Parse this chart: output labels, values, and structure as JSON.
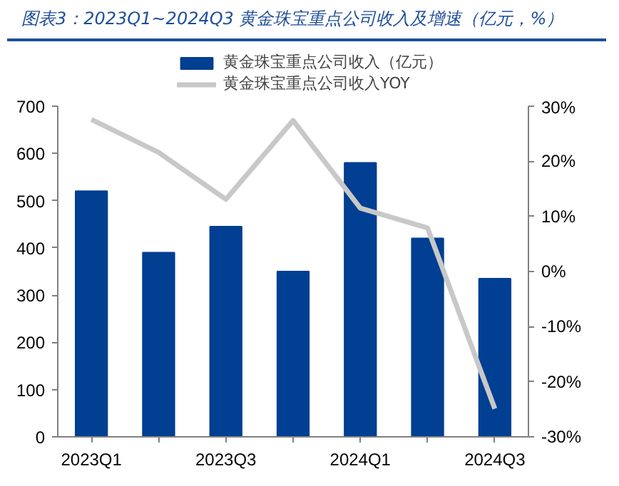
{
  "chart_data": {
    "type": "bar",
    "title": "图表3：2023Q1~2024Q3 黄金珠宝重点公司收入及增速（亿元，%）",
    "categories": [
      "2023Q1",
      null,
      "2023Q3",
      null,
      "2024Q1",
      null,
      "2024Q3"
    ],
    "series": [
      {
        "name": "黄金珠宝重点公司收入（亿元）",
        "color": "#003f91",
        "values": [
          520,
          390,
          445,
          350,
          580,
          420,
          335
        ]
      },
      {
        "name": "黄金珠宝重点公司收入YOY",
        "type": "line",
        "axis": "y2",
        "color": "#c8c8c8",
        "values": [
          27.6,
          21.6,
          13.1,
          27.4,
          11.5,
          7.9,
          -24.9
        ]
      }
    ],
    "ylim": [
      0,
      700
    ],
    "yticks": [
      0,
      100,
      200,
      300,
      400,
      500,
      600,
      700
    ],
    "y2lim": [
      -30,
      30
    ],
    "y2ticks": [
      {
        "value": -30,
        "label": "-30%"
      },
      {
        "value": -20,
        "label": "-20%"
      },
      {
        "value": -10,
        "label": "-10%"
      },
      {
        "value": 0,
        "label": "0%"
      },
      {
        "value": 10,
        "label": "10%"
      },
      {
        "value": 20,
        "label": "20%"
      },
      {
        "value": 30,
        "label": "30%"
      }
    ],
    "grid": false,
    "legend": "top"
  }
}
